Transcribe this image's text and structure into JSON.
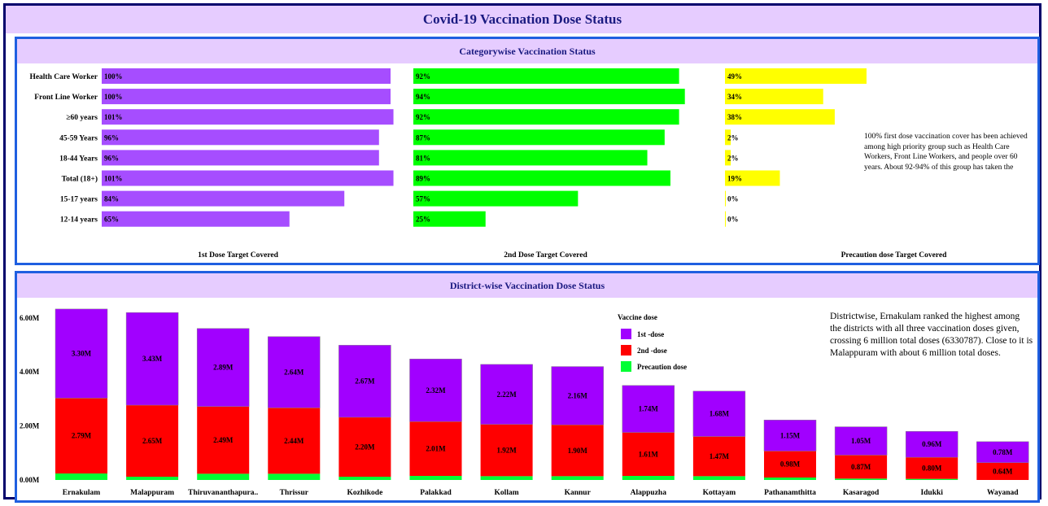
{
  "title": "Covid-19 Vaccination Dose Status",
  "category_panel": {
    "title": "Categorywise Vaccination Status",
    "note": "100% first dose vaccination cover has been achieved among high priority group such as  Health Care Workers, Front Line Workers, and people over 60 years. About 92-94% of this group has taken the"
  },
  "district_panel": {
    "title": "District-wise Vaccination Dose Status",
    "note": "Districtwise, Ernakulam ranked the highest  among the districts with all three vaccination doses given, crossing 6 million total doses (6330787).   Close to it is Malappuram  with about  6 million total doses."
  },
  "colors": {
    "dose1": "#a64dff",
    "dose2": "#00ff00",
    "precaution": "#ffff00",
    "stack1": "#a100ff",
    "stack2": "#ff0000",
    "stack3": "#00ff33",
    "header_bg": "#e6ccff"
  },
  "chart_data": [
    {
      "type": "bar",
      "orientation": "horizontal",
      "categories": [
        "Health Care Worker",
        "Front Line Worker",
        "≥60 years",
        "45-59 Years",
        "18-44 Years",
        "Total (18+)",
        "15-17 years",
        "12-14 years"
      ],
      "series": [
        {
          "name": "1st Dose Target Covered",
          "values": [
            100,
            100,
            101,
            96,
            96,
            101,
            84,
            65
          ],
          "labels": [
            "100%",
            "100%",
            "101%",
            "96%",
            "96%",
            "101%",
            "84%",
            "65%"
          ]
        },
        {
          "name": "2nd Dose Target Covered",
          "values": [
            92,
            94,
            92,
            87,
            81,
            89,
            57,
            25
          ],
          "labels": [
            "92%",
            "94%",
            "92%",
            "87%",
            "81%",
            "89%",
            "57%",
            "25%"
          ]
        },
        {
          "name": "Precaution dose Target Covered",
          "values": [
            49,
            34,
            38,
            2,
            2,
            19,
            0,
            0
          ],
          "labels": [
            "49%",
            "34%",
            "38%",
            "2%",
            "2%",
            "19%",
            "0%",
            "0%"
          ]
        }
      ]
    },
    {
      "type": "bar",
      "stacked": true,
      "categories": [
        "Ernakulam",
        "Malappuram",
        "Thiruvananthapura..",
        "Thrissur",
        "Kozhikode",
        "Palakkad",
        "Kollam",
        "Kannur",
        "Alappuzha",
        "Kottayam",
        "Pathanamthitta",
        "Kasaragod",
        "Idukki",
        "Wayanad"
      ],
      "legend_title": "Vaccine dose",
      "legend_position": "top-center",
      "y_ticks": [
        "0.00M",
        "2.00M",
        "4.00M",
        "6.00M"
      ],
      "ylim": [
        0,
        6.4
      ],
      "series": [
        {
          "name": "Precaution dose",
          "values": [
            0.24,
            0.12,
            0.23,
            0.23,
            0.12,
            0.15,
            0.14,
            0.14,
            0.15,
            0.14,
            0.09,
            0.05,
            0.04,
            0.0
          ]
        },
        {
          "name": "2nd -dose",
          "values": [
            2.79,
            2.65,
            2.49,
            2.44,
            2.2,
            2.01,
            1.92,
            1.9,
            1.61,
            1.47,
            0.98,
            0.87,
            0.8,
            0.64
          ],
          "labels": [
            "2.79M",
            "2.65M",
            "2.49M",
            "2.44M",
            "2.20M",
            "2.01M",
            "1.92M",
            "1.90M",
            "1.61M",
            "1.47M",
            "0.98M",
            "0.87M",
            "0.80M",
            "0.64M"
          ]
        },
        {
          "name": "1st -dose",
          "values": [
            3.3,
            3.43,
            2.89,
            2.64,
            2.67,
            2.32,
            2.22,
            2.16,
            1.74,
            1.68,
            1.15,
            1.05,
            0.96,
            0.78
          ],
          "labels": [
            "3.30M",
            "3.43M",
            "2.89M",
            "2.64M",
            "2.67M",
            "2.32M",
            "2.22M",
            "2.16M",
            "1.74M",
            "1.68M",
            "1.15M",
            "1.05M",
            "0.96M",
            "0.78M"
          ]
        }
      ]
    }
  ]
}
